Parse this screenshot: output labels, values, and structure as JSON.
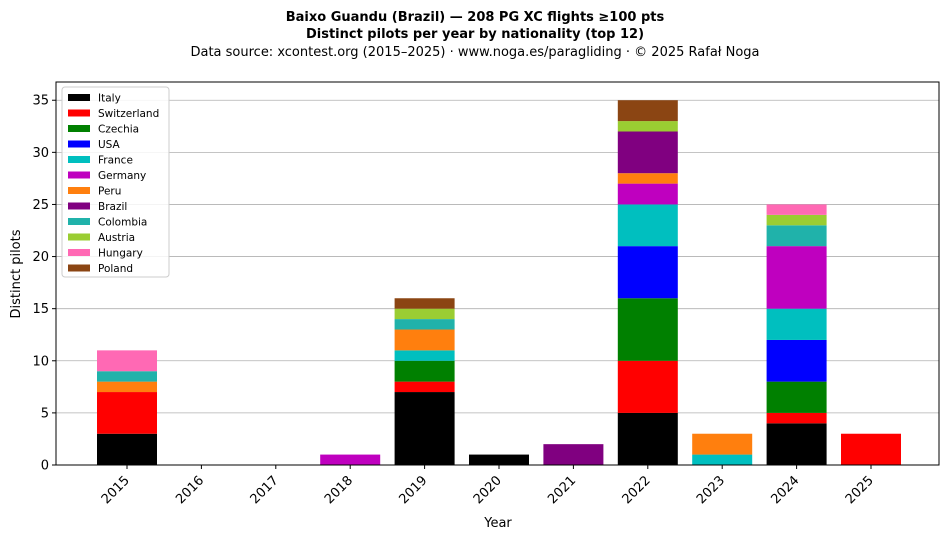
{
  "chart_data": {
    "type": "bar",
    "stacked": true,
    "title_line1": "Baixo Guandu (Brazil)  —  208 PG XC flights ≥100 pts",
    "title_line2": "Distinct pilots per year by nationality (top 12)",
    "subtitle": "Data source: xcontest.org (2015–2025)  ·  www.noga.es/paragliding  ·  © 2025 Rafał Noga",
    "xlabel": "Year",
    "ylabel": "Distinct pilots",
    "ylim": [
      0,
      36.75
    ],
    "yticks": [
      0,
      5,
      10,
      15,
      20,
      25,
      30,
      35
    ],
    "grid": "horizontal",
    "legend_position": "top-left",
    "categories": [
      "2015",
      "2016",
      "2017",
      "2018",
      "2019",
      "2020",
      "2021",
      "2022",
      "2023",
      "2024",
      "2025"
    ],
    "series": [
      {
        "name": "Italy",
        "color": "#000000",
        "values": [
          3,
          0,
          0,
          0,
          7,
          1,
          0,
          5,
          0,
          4,
          0
        ]
      },
      {
        "name": "Switzerland",
        "color": "#ff0000",
        "values": [
          4,
          0,
          0,
          0,
          1,
          0,
          0,
          5,
          0,
          1,
          3
        ]
      },
      {
        "name": "Czechia",
        "color": "#008000",
        "values": [
          0,
          0,
          0,
          0,
          2,
          0,
          0,
          6,
          0,
          3,
          0
        ]
      },
      {
        "name": "USA",
        "color": "#0000ff",
        "values": [
          0,
          0,
          0,
          0,
          0,
          0,
          0,
          5,
          0,
          4,
          0
        ]
      },
      {
        "name": "France",
        "color": "#00bfbf",
        "values": [
          0,
          0,
          0,
          0,
          1,
          0,
          0,
          4,
          1,
          3,
          0
        ]
      },
      {
        "name": "Germany",
        "color": "#bf00bf",
        "values": [
          0,
          0,
          0,
          1,
          0,
          0,
          0,
          2,
          0,
          6,
          0
        ]
      },
      {
        "name": "Peru",
        "color": "#ff7f0e",
        "values": [
          1,
          0,
          0,
          0,
          2,
          0,
          0,
          1,
          2,
          0,
          0
        ]
      },
      {
        "name": "Brazil",
        "color": "#800080",
        "values": [
          0,
          0,
          0,
          0,
          0,
          0,
          2,
          4,
          0,
          0,
          0
        ]
      },
      {
        "name": "Colombia",
        "color": "#20b2aa",
        "values": [
          1,
          0,
          0,
          0,
          1,
          0,
          0,
          0,
          0,
          2,
          0
        ]
      },
      {
        "name": "Austria",
        "color": "#9acd32",
        "values": [
          0,
          0,
          0,
          0,
          1,
          0,
          0,
          1,
          0,
          1,
          0
        ]
      },
      {
        "name": "Hungary",
        "color": "#ff69b4",
        "values": [
          2,
          0,
          0,
          0,
          0,
          0,
          0,
          0,
          0,
          1,
          0
        ]
      },
      {
        "name": "Poland",
        "color": "#8b4513",
        "values": [
          0,
          0,
          0,
          0,
          1,
          0,
          0,
          2,
          0,
          0,
          0
        ]
      }
    ]
  }
}
